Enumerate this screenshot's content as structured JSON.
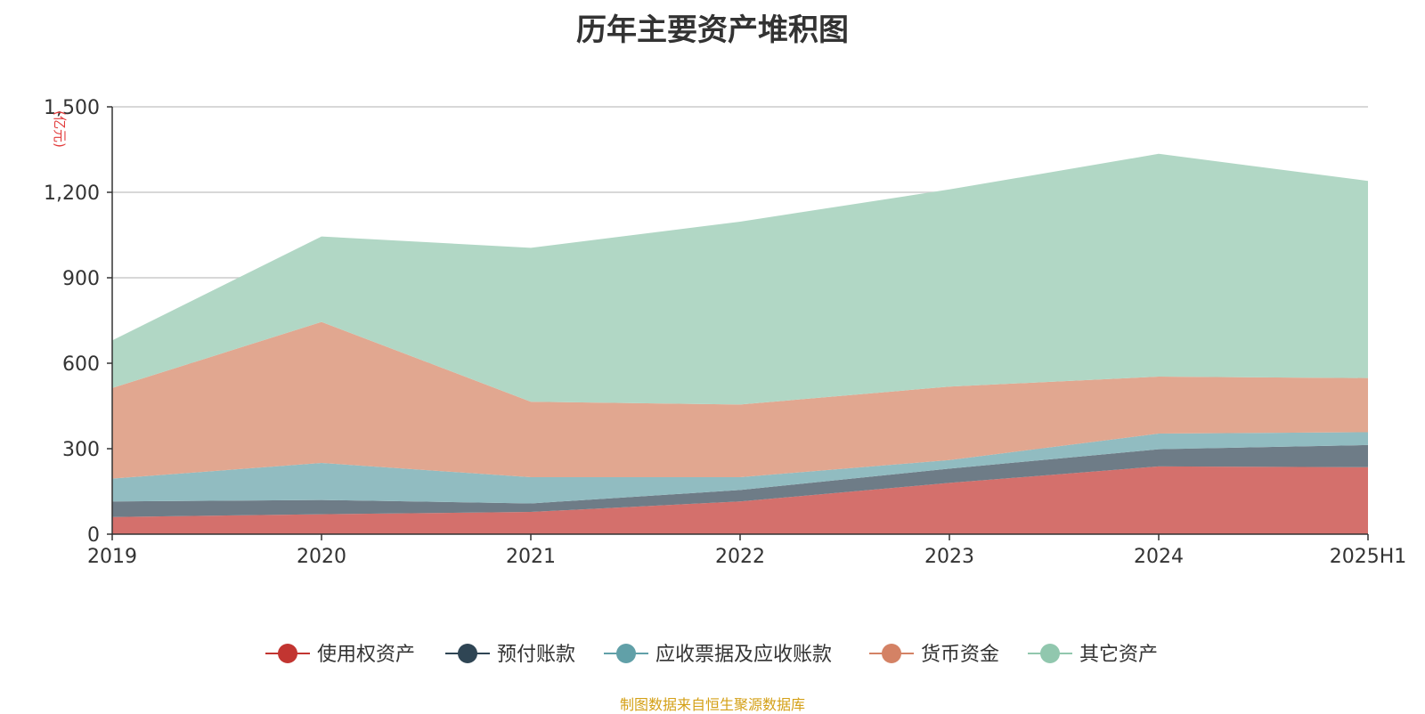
{
  "title": "历年主要资产堆积图",
  "source": "制图数据来自恒生聚源数据库",
  "chart_data": {
    "type": "area",
    "stacked": true,
    "title": "历年主要资产堆积图",
    "ylabel": "(亿元)",
    "categories": [
      "2019",
      "2020",
      "2021",
      "2022",
      "2023",
      "2024",
      "2025H1"
    ],
    "ylim": [
      0,
      1500
    ],
    "yticks": [
      0,
      300,
      600,
      900,
      1200,
      1500
    ],
    "ytick_labels": [
      "0",
      "300",
      "600",
      "900",
      "1,200",
      "1,500"
    ],
    "grid": true,
    "legend_position": "bottom",
    "series": [
      {
        "name": "使用权资产",
        "color": "#c23531",
        "fill": "#d4706c",
        "values": [
          60,
          70,
          78,
          115,
          180,
          238,
          235
        ]
      },
      {
        "name": "预付账款",
        "color": "#2f4554",
        "fill": "#6e7c87",
        "values": [
          55,
          50,
          30,
          40,
          50,
          60,
          78
        ]
      },
      {
        "name": "应收票据及应收账款",
        "color": "#61a0a8",
        "fill": "#91bcc1",
        "values": [
          80,
          130,
          92,
          45,
          30,
          55,
          45
        ]
      },
      {
        "name": "货币资金",
        "color": "#d48265",
        "fill": "#e1a790",
        "values": [
          318,
          495,
          265,
          255,
          258,
          200,
          190
        ]
      },
      {
        "name": "其它资产",
        "color": "#91c7ae",
        "fill": "#b1d7c5",
        "values": [
          167,
          300,
          540,
          642,
          692,
          782,
          692
        ]
      }
    ]
  }
}
